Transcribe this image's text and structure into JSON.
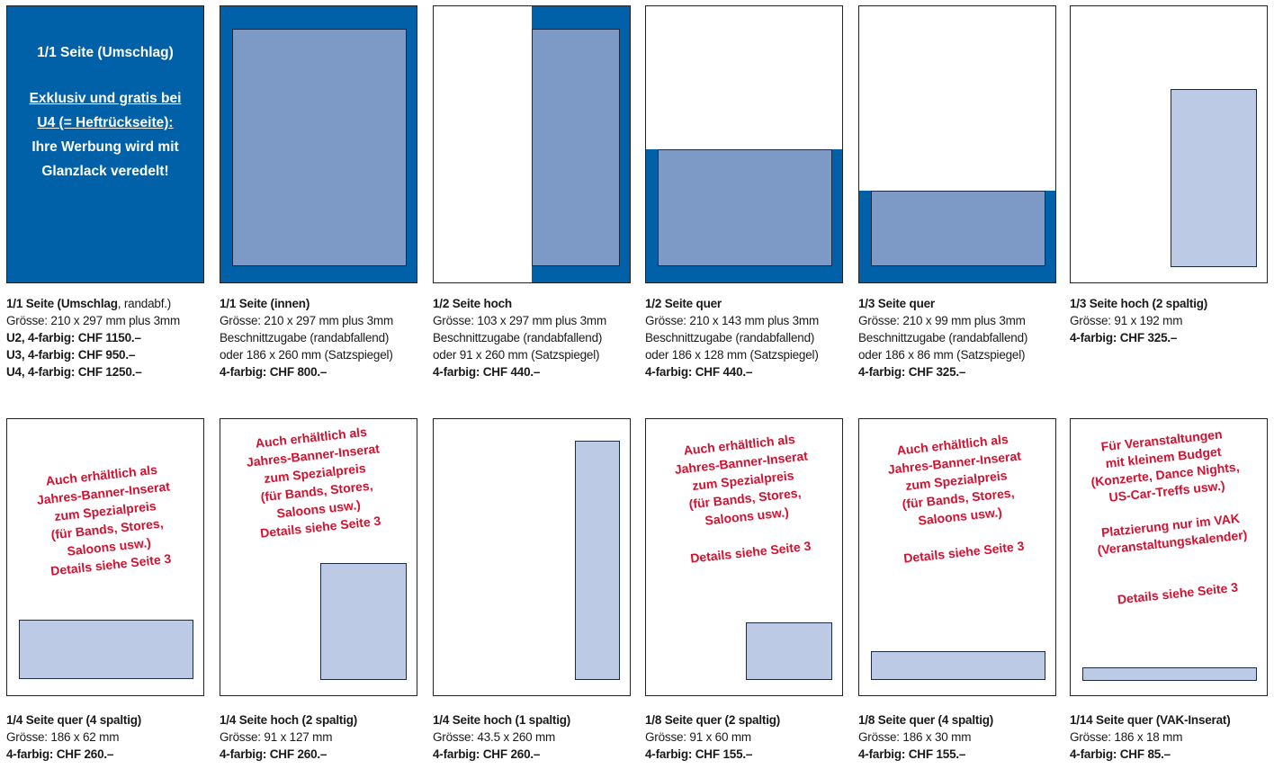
{
  "cover": {
    "title": "1/1 Seite (Umschlag)",
    "line1": "Exklusiv und gratis bei",
    "line2": "U4 (= Heftrückseite):",
    "line3": "Ihre Werbung wird mit",
    "line4": "Glanzlack veredelt!"
  },
  "row1": [
    {
      "title": "1/1 Seite (Umschlag",
      "title_suffix": ", randabf.)",
      "lines": [
        "Grösse: 210 x 297 mm plus 3mm"
      ],
      "bold_lines": [
        "U2, 4-farbig: CHF 1150.–",
        "U3, 4-farbig: CHF 950.–",
        "U4, 4-farbig: CHF 1250.–"
      ]
    },
    {
      "title": "1/1 Seite (innen)",
      "lines": [
        "Grösse: 210 x 297 mm plus 3mm",
        "Beschnittzugabe (randabfallend)",
        "oder 186 x 260 mm (Satzspiegel)"
      ],
      "bold_lines": [
        "4-farbig: CHF 800.–"
      ]
    },
    {
      "title": "1/2 Seite hoch",
      "lines": [
        "Grösse: 103 x 297 mm plus 3mm",
        "Beschnittzugabe (randabfallend)",
        "oder 91 x 260 mm (Satzspiegel)"
      ],
      "bold_lines": [
        "4-farbig: CHF 440.–"
      ]
    },
    {
      "title": "1/2 Seite quer",
      "lines": [
        "Grösse: 210 x 143 mm plus 3mm",
        "Beschnittzugabe (randabfallend)",
        "oder 186 x 128 mm (Satzspiegel)"
      ],
      "bold_lines": [
        "4-farbig: CHF 440.–"
      ]
    },
    {
      "title": "1/3 Seite quer",
      "lines": [
        "Grösse: 210 x 99 mm plus 3mm",
        "Beschnittzugabe (randabfallend)",
        "oder 186 x 86 mm (Satzspiegel)"
      ],
      "bold_lines": [
        "4-farbig: CHF 325.–"
      ]
    },
    {
      "title": "1/3 Seite hoch (2 spaltig)",
      "lines": [
        "Grösse: 91 x 192 mm"
      ],
      "bold_lines": [
        "4-farbig: CHF 325.–"
      ]
    }
  ],
  "row2": [
    {
      "title": "1/4 Seite quer (4 spaltig)",
      "lines": [
        "Grösse: 186 x 62 mm"
      ],
      "bold_lines": [
        "4-farbig: CHF 260.–"
      ],
      "note": "Auch erhältlich als\nJahres-Banner-Inserat\nzum Spezialpreis\n(für Bands, Stores,\nSaloons usw.)\nDetails siehe Seite 3"
    },
    {
      "title": "1/4 Seite hoch (2 spaltig)",
      "lines": [
        "Grösse: 91 x 127 mm"
      ],
      "bold_lines": [
        "4-farbig: CHF 260.–"
      ],
      "note": "Auch erhältlich als\nJahres-Banner-Inserat\nzum Spezialpreis\n(für Bands, Stores,\nSaloons usw.)\nDetails siehe Seite 3"
    },
    {
      "title": "1/4 Seite hoch (1 spaltig)",
      "lines": [
        "Grösse: 43.5 x 260 mm"
      ],
      "bold_lines": [
        "4-farbig: CHF 260.–"
      ],
      "note": ""
    },
    {
      "title": "1/8 Seite quer (2 spaltig)",
      "lines": [
        "Grösse: 91 x 60 mm"
      ],
      "bold_lines": [
        "4-farbig: CHF 155.–"
      ],
      "note": "Auch erhältlich als\nJahres-Banner-Inserat\nzum Spezialpreis\n(für Bands, Stores,\nSaloons usw.)\n\nDetails siehe Seite 3"
    },
    {
      "title": "1/8 Seite quer (4 spaltig)",
      "lines": [
        "Grösse: 186 x 30 mm"
      ],
      "bold_lines": [
        "4-farbig: CHF 155.–"
      ],
      "note": "Auch erhältlich als\nJahres-Banner-Inserat\nzum Spezialpreis\n(für Bands, Stores,\nSaloons usw.)\n\nDetails siehe Seite 3"
    },
    {
      "title": "1/14 Seite quer (VAK-Inserat)",
      "lines": [
        "Grösse: 186 x 18 mm"
      ],
      "bold_lines": [
        "4-farbig: CHF 85.–"
      ],
      "note": "Für Veranstaltungen\nmit kleinem Budget\n(Konzerte, Dance Nights,\nUS-Car-Treffs usw.)\n\nPlatzierung nur im VAK\n(Veranstaltungskalender)\n\n\nDetails siehe Seite 3"
    }
  ]
}
